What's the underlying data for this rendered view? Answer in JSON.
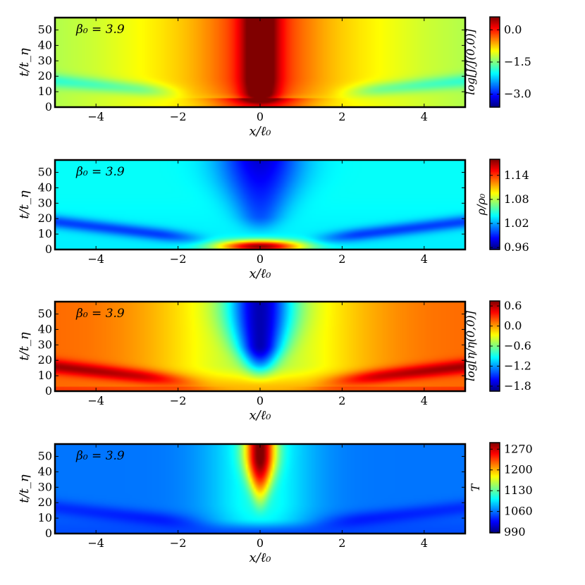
{
  "chart_data": [
    {
      "type": "heatmap",
      "annotation": "β₀ = 3.9",
      "xlabel": "x/ℓ₀",
      "ylabel": "t/t_η",
      "xlim": [
        -5,
        5
      ],
      "ylim": [
        0,
        58
      ],
      "x_ticks": [
        -4,
        -2,
        0,
        2,
        4
      ],
      "x_tick_labels": [
        "−4",
        "−2",
        "0",
        "2",
        "4"
      ],
      "y_ticks": [
        0,
        10,
        20,
        30,
        40,
        50
      ],
      "y_tick_labels": [
        "0",
        "10",
        "20",
        "30",
        "40",
        "50"
      ],
      "colorbar": {
        "label": "log[J/J(0,0)]",
        "range": [
          -3.6,
          0.6
        ],
        "ticks": [
          0.0,
          -1.5,
          -3.0
        ],
        "tick_labels": [
          "0.0",
          "−1.5",
          "−3.0"
        ]
      },
      "field_model": "current",
      "colormap": "jet"
    },
    {
      "type": "heatmap",
      "annotation": "β₀ = 3.9",
      "xlabel": "x/ℓ₀",
      "ylabel": "t/t_η",
      "xlim": [
        -5,
        5
      ],
      "ylim": [
        0,
        58
      ],
      "x_ticks": [
        -4,
        -2,
        0,
        2,
        4
      ],
      "x_tick_labels": [
        "−4",
        "−2",
        "0",
        "2",
        "4"
      ],
      "y_ticks": [
        0,
        10,
        20,
        30,
        40,
        50
      ],
      "y_tick_labels": [
        "0",
        "10",
        "20",
        "30",
        "40",
        "50"
      ],
      "colorbar": {
        "label": "ρ/ρ₀",
        "range": [
          0.955,
          1.18
        ],
        "ticks": [
          1.14,
          1.08,
          1.02,
          0.96
        ],
        "tick_labels": [
          "1.14",
          "1.08",
          "1.02",
          "0.96"
        ]
      },
      "field_model": "density",
      "colormap": "jet"
    },
    {
      "type": "heatmap",
      "annotation": "β₀ = 3.9",
      "xlabel": "x/ℓ₀",
      "ylabel": "t/t_η",
      "xlim": [
        -5,
        5
      ],
      "ylim": [
        0,
        58
      ],
      "x_ticks": [
        -4,
        -2,
        0,
        2,
        4
      ],
      "x_tick_labels": [
        "−4",
        "−2",
        "0",
        "2",
        "4"
      ],
      "y_ticks": [
        0,
        10,
        20,
        30,
        40,
        50
      ],
      "y_tick_labels": [
        "0",
        "10",
        "20",
        "30",
        "40",
        "50"
      ],
      "colorbar": {
        "label": "log[η/η(0,0)]",
        "range": [
          -1.95,
          0.75
        ],
        "ticks": [
          0.6,
          0.0,
          -0.6,
          -1.2,
          -1.8
        ],
        "tick_labels": [
          "0.6",
          "0.0",
          "−0.6",
          "−1.2",
          "−1.8"
        ]
      },
      "field_model": "resistivity",
      "colormap": "jet"
    },
    {
      "type": "heatmap",
      "annotation": "β₀ = 3.9",
      "xlabel": "x/ℓ₀",
      "ylabel": "t/t_η",
      "xlim": [
        -5,
        5
      ],
      "ylim": [
        0,
        58
      ],
      "x_ticks": [
        -4,
        -2,
        0,
        2,
        4
      ],
      "x_tick_labels": [
        "−4",
        "−2",
        "0",
        "2",
        "4"
      ],
      "y_ticks": [
        0,
        10,
        20,
        30,
        40,
        50
      ],
      "y_tick_labels": [
        "0",
        "10",
        "20",
        "30",
        "40",
        "50"
      ],
      "colorbar": {
        "label": "T",
        "range": [
          988,
          1292
        ],
        "ticks": [
          1270,
          1200,
          1130,
          1060,
          990
        ],
        "tick_labels": [
          "1270",
          "1200",
          "1130",
          "1060",
          "990"
        ]
      },
      "field_model": "temperature",
      "colormap": "jet"
    }
  ]
}
